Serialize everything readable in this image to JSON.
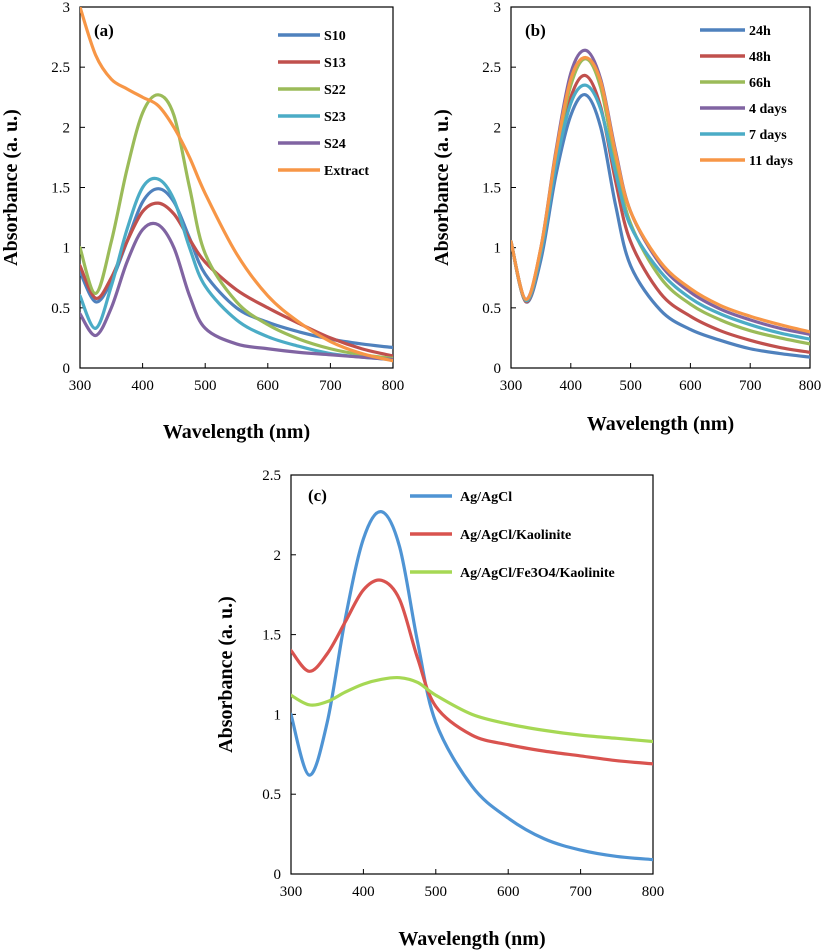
{
  "chart_data": [
    {
      "type": "line",
      "panel_label": "(a)",
      "xlabel": "Wavelength (nm)",
      "ylabel": "Absorbance (a. u.)",
      "xlim": [
        300,
        800
      ],
      "ylim": [
        0,
        3
      ],
      "xticks": [
        "300",
        "400",
        "500",
        "600",
        "700",
        "800"
      ],
      "yticks": [
        "0",
        "0.5",
        "1",
        "1.5",
        "2",
        "2.5",
        "3"
      ],
      "grid": false,
      "legend": "top-right",
      "x": [
        300,
        325,
        350,
        375,
        400,
        425,
        450,
        475,
        500,
        550,
        600,
        650,
        700,
        750,
        800
      ],
      "series": [
        {
          "name": "S10",
          "color": "#4f81bd",
          "values": [
            0.8,
            0.55,
            0.72,
            1.05,
            1.38,
            1.49,
            1.38,
            1.08,
            0.78,
            0.5,
            0.38,
            0.3,
            0.24,
            0.2,
            0.17
          ]
        },
        {
          "name": "S13",
          "color": "#c0504d",
          "values": [
            0.85,
            0.58,
            0.75,
            1.05,
            1.3,
            1.37,
            1.28,
            1.07,
            0.88,
            0.65,
            0.5,
            0.37,
            0.25,
            0.16,
            0.1
          ]
        },
        {
          "name": "S22",
          "color": "#9bbb59",
          "values": [
            1.0,
            0.62,
            1.05,
            1.65,
            2.12,
            2.27,
            2.1,
            1.5,
            0.95,
            0.55,
            0.36,
            0.24,
            0.16,
            0.11,
            0.08
          ]
        },
        {
          "name": "S23",
          "color": "#4bacc6",
          "values": [
            0.6,
            0.33,
            0.68,
            1.15,
            1.5,
            1.57,
            1.4,
            1.0,
            0.68,
            0.4,
            0.26,
            0.18,
            0.12,
            0.09,
            0.07
          ]
        },
        {
          "name": "S24",
          "color": "#8064a2",
          "values": [
            0.45,
            0.27,
            0.5,
            0.88,
            1.15,
            1.19,
            1.0,
            0.6,
            0.33,
            0.2,
            0.16,
            0.13,
            0.11,
            0.09,
            0.07
          ]
        },
        {
          "name": "Extract",
          "color": "#f79646",
          "values": [
            3.0,
            2.6,
            2.4,
            2.32,
            2.25,
            2.18,
            2.0,
            1.75,
            1.45,
            0.95,
            0.6,
            0.38,
            0.22,
            0.12,
            0.06
          ]
        }
      ]
    },
    {
      "type": "line",
      "panel_label": "(b)",
      "xlabel": "Wavelength (nm)",
      "ylabel": "Absorbance (a. u.)",
      "xlim": [
        300,
        800
      ],
      "ylim": [
        0,
        3
      ],
      "xticks": [
        "300",
        "400",
        "500",
        "600",
        "700",
        "800"
      ],
      "yticks": [
        "0",
        "0.5",
        "1",
        "1.5",
        "2",
        "2.5",
        "3"
      ],
      "grid": false,
      "legend": "top-right",
      "x": [
        300,
        325,
        350,
        375,
        400,
        425,
        450,
        475,
        500,
        550,
        600,
        650,
        700,
        750,
        800
      ],
      "series": [
        {
          "name": "24h",
          "color": "#4f81bd",
          "values": [
            1.05,
            0.55,
            0.9,
            1.6,
            2.1,
            2.27,
            2.0,
            1.35,
            0.85,
            0.48,
            0.32,
            0.23,
            0.16,
            0.12,
            0.09
          ]
        },
        {
          "name": "48h",
          "color": "#c0504d",
          "values": [
            1.05,
            0.55,
            0.95,
            1.7,
            2.25,
            2.43,
            2.17,
            1.55,
            1.05,
            0.62,
            0.43,
            0.31,
            0.23,
            0.17,
            0.13
          ]
        },
        {
          "name": "66h",
          "color": "#9bbb59",
          "values": [
            1.05,
            0.56,
            0.97,
            1.75,
            2.35,
            2.57,
            2.33,
            1.7,
            1.2,
            0.75,
            0.53,
            0.4,
            0.31,
            0.25,
            0.2
          ]
        },
        {
          "name": "4 days",
          "color": "#8064a2",
          "values": [
            1.05,
            0.57,
            1.0,
            1.8,
            2.45,
            2.64,
            2.4,
            1.8,
            1.3,
            0.86,
            0.63,
            0.49,
            0.4,
            0.33,
            0.28
          ]
        },
        {
          "name": "7 days",
          "color": "#4bacc6",
          "values": [
            1.05,
            0.56,
            0.95,
            1.68,
            2.2,
            2.35,
            2.15,
            1.62,
            1.18,
            0.8,
            0.58,
            0.45,
            0.36,
            0.29,
            0.24
          ]
        },
        {
          "name": "11 days",
          "color": "#f79646",
          "values": [
            1.05,
            0.57,
            1.0,
            1.78,
            2.4,
            2.58,
            2.38,
            1.78,
            1.3,
            0.88,
            0.66,
            0.52,
            0.43,
            0.36,
            0.3
          ]
        }
      ]
    },
    {
      "type": "line",
      "panel_label": "(c)",
      "xlabel": "Wavelength (nm)",
      "ylabel": "Absorbance (a. u.)",
      "xlim": [
        300,
        800
      ],
      "ylim": [
        0,
        2.5
      ],
      "xticks": [
        "300",
        "400",
        "500",
        "600",
        "700",
        "800"
      ],
      "yticks": [
        "0",
        "0.5",
        "1",
        "1.5",
        "2",
        "2.5"
      ],
      "grid": false,
      "legend": "top-right",
      "x": [
        300,
        325,
        350,
        375,
        400,
        425,
        450,
        475,
        500,
        550,
        600,
        650,
        700,
        750,
        800
      ],
      "series": [
        {
          "name": "Ag/AgCl",
          "color": "#4f94d4",
          "values": [
            1.0,
            0.62,
            0.95,
            1.6,
            2.1,
            2.27,
            2.05,
            1.45,
            0.95,
            0.55,
            0.35,
            0.22,
            0.15,
            0.11,
            0.09
          ]
        },
        {
          "name": "Ag/AgCl/Kaolinite",
          "color": "#d9534f",
          "values": [
            1.4,
            1.27,
            1.38,
            1.58,
            1.78,
            1.84,
            1.72,
            1.35,
            1.05,
            0.87,
            0.81,
            0.77,
            0.74,
            0.71,
            0.69
          ]
        },
        {
          "name": "Ag/AgCl/Fe3O4/Kaolinite",
          "color": "#a6d854",
          "values": [
            1.12,
            1.06,
            1.08,
            1.14,
            1.19,
            1.22,
            1.23,
            1.2,
            1.12,
            1.0,
            0.94,
            0.9,
            0.87,
            0.85,
            0.83
          ]
        }
      ]
    }
  ]
}
